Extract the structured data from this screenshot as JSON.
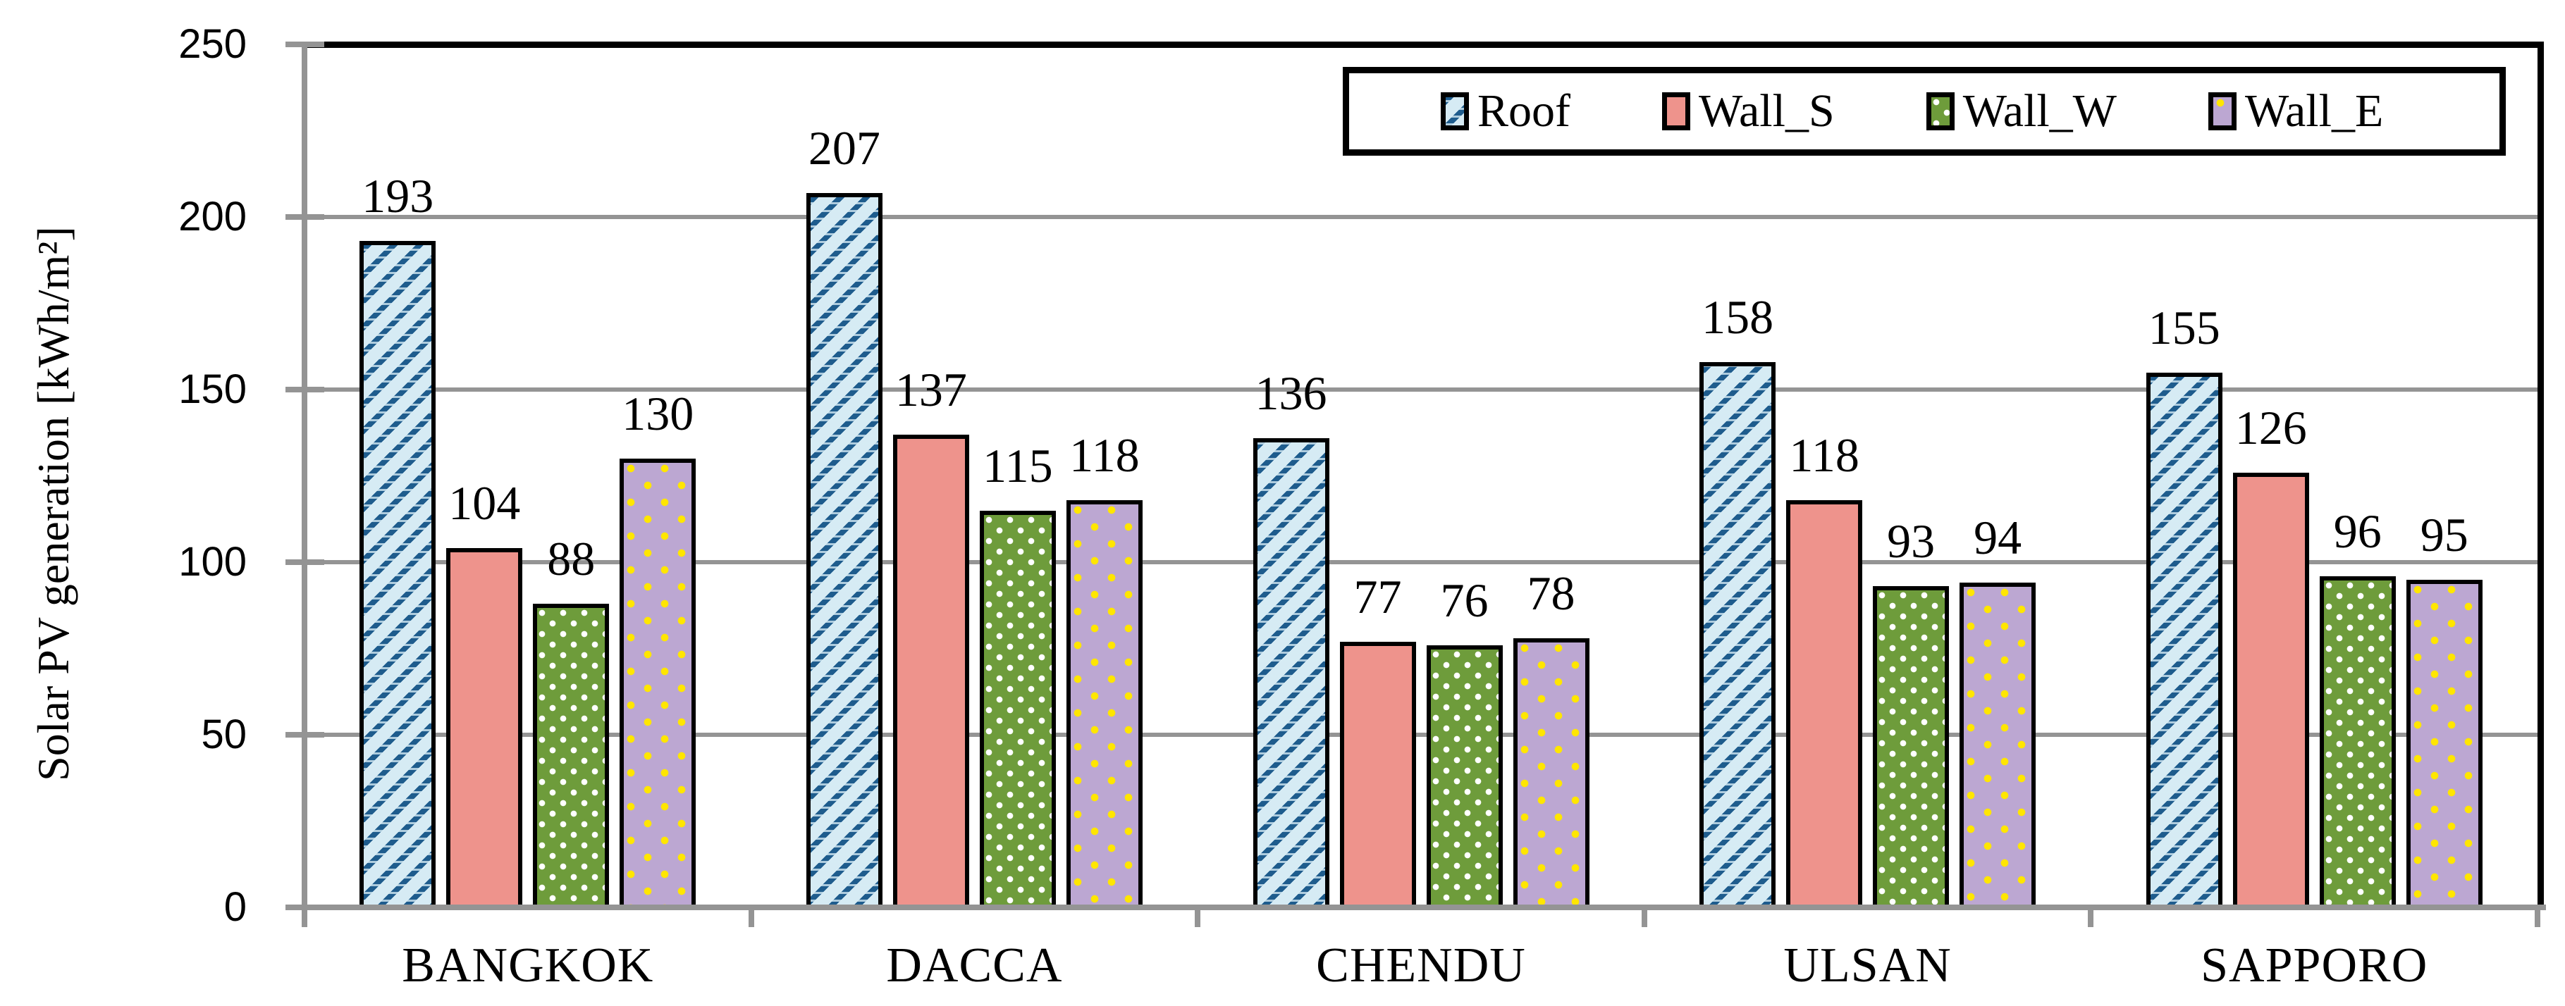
{
  "chart_data": {
    "type": "bar",
    "title": "",
    "ylabel": "Solar PV generation [kWh/m²]",
    "xlabel": "",
    "categories": [
      "BANGKOK",
      "DACCA",
      "CHENDU",
      "ULSAN",
      "SAPPORO"
    ],
    "series": [
      {
        "name": "Roof",
        "values": [
          193,
          207,
          136,
          158,
          155
        ],
        "pattern": "blue-diagonal-hatch",
        "fill": "#d6ebf4",
        "pattern_color": "#1e5c8d"
      },
      {
        "name": "Wall_S",
        "values": [
          104,
          137,
          77,
          118,
          126
        ],
        "pattern": "solid",
        "fill": "#ee938c",
        "pattern_color": "#ee938c"
      },
      {
        "name": "Wall_W",
        "values": [
          88,
          115,
          76,
          93,
          96
        ],
        "pattern": "white-dots",
        "fill": "#6e9c3b",
        "pattern_color": "#ffffff"
      },
      {
        "name": "Wall_E",
        "values": [
          130,
          118,
          78,
          94,
          95
        ],
        "pattern": "yellow-dots",
        "fill": "#bca7d2",
        "pattern_color": "#ffe600"
      }
    ],
    "ylim": [
      0,
      250
    ],
    "yticks": [
      0,
      50,
      100,
      150,
      200,
      250
    ],
    "grid": true,
    "gridline_color": "#949494",
    "axis_color": "#949494",
    "plot_border_color": "#000000",
    "bar_border_color": "#000000",
    "legend_position": "top-right",
    "legend_labels": [
      "Roof",
      "Wall_S",
      "Wall_W",
      "Wall_E"
    ]
  }
}
